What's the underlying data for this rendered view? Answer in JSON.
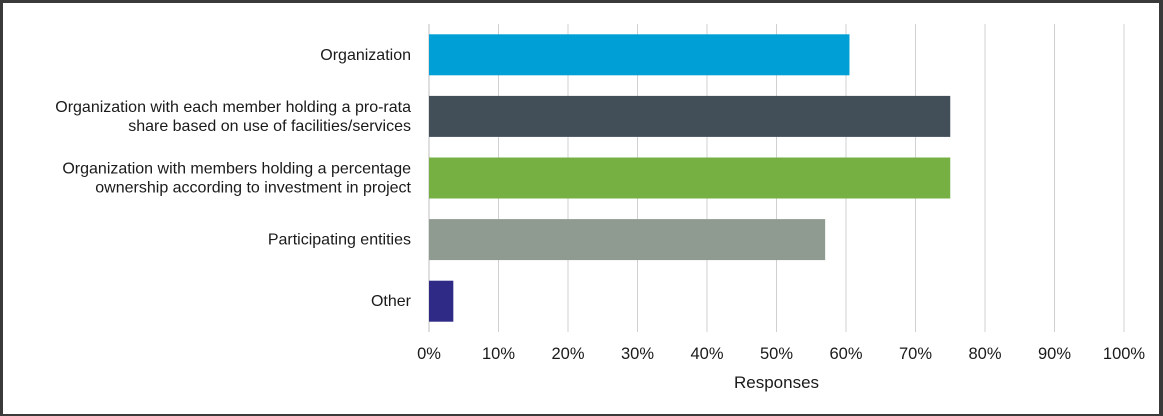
{
  "chart_data": {
    "type": "bar",
    "orientation": "horizontal",
    "categories": [
      [
        "Organization"
      ],
      [
        "Organization with each member holding a pro-rata",
        "share based on use of facilities/services"
      ],
      [
        "Organization with members holding a percentage",
        "ownership according to investment in project"
      ],
      [
        "Participating entities"
      ],
      [
        "Other"
      ]
    ],
    "values": [
      60.5,
      75,
      75,
      57,
      3.5
    ],
    "colors": [
      "#00a0d6",
      "#424f59",
      "#76b043",
      "#8f9b91",
      "#2e2a86"
    ],
    "xlabel": "Responses",
    "xlim": [
      0,
      100
    ],
    "xticks": [
      "0%",
      "10%",
      "20%",
      "30%",
      "40%",
      "50%",
      "60%",
      "70%",
      "80%",
      "90%",
      "100%"
    ],
    "grid": true
  }
}
